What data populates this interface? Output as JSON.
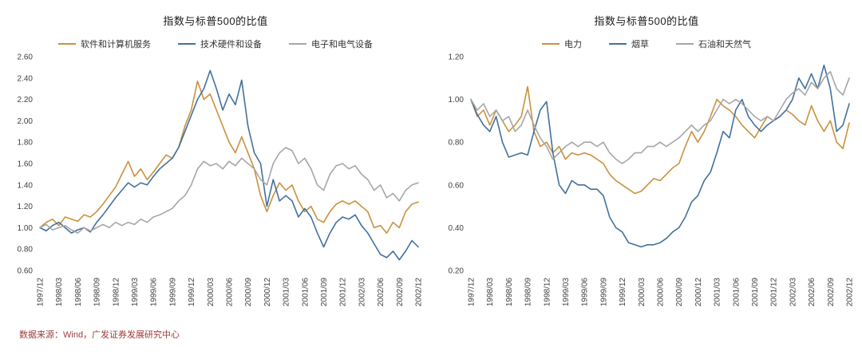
{
  "page": {
    "source_note": "数据来源：Wind，广发证券发展研究中心"
  },
  "chart_data": [
    {
      "type": "line",
      "title": "指数与标普500的比值",
      "ylim": [
        0.6,
        2.6
      ],
      "ytick_step": 0.2,
      "grid": false,
      "legend_position": "top",
      "x_tick_every": 3,
      "x_labels": [
        "1997/12",
        "1998/03",
        "1998/06",
        "1998/09",
        "1998/12",
        "1999/03",
        "1999/06",
        "1999/09",
        "1999/12",
        "2000/03",
        "2000/06",
        "2000/09",
        "2000/12",
        "2001/03",
        "2001/06",
        "2001/09",
        "2001/12",
        "2002/03",
        "2002/06",
        "2002/09",
        "2002/12"
      ],
      "series": [
        {
          "name": "软件和计算机服务",
          "color": "#C9913D",
          "values": [
            1.0,
            1.05,
            1.08,
            1.02,
            1.1,
            1.08,
            1.06,
            1.12,
            1.1,
            1.15,
            1.22,
            1.3,
            1.38,
            1.5,
            1.62,
            1.48,
            1.55,
            1.45,
            1.52,
            1.6,
            1.68,
            1.65,
            1.75,
            1.95,
            2.1,
            2.37,
            2.2,
            2.25,
            2.1,
            1.95,
            1.8,
            1.7,
            1.85,
            1.7,
            1.55,
            1.3,
            1.15,
            1.3,
            1.42,
            1.35,
            1.4,
            1.25,
            1.15,
            1.2,
            1.08,
            1.05,
            1.15,
            1.22,
            1.25,
            1.22,
            1.25,
            1.2,
            1.15,
            1.0,
            1.02,
            0.95,
            1.05,
            1.0,
            1.15,
            1.22,
            1.24
          ]
        },
        {
          "name": "技术硬件和设备",
          "color": "#41719C",
          "values": [
            1.0,
            0.97,
            1.02,
            1.05,
            1.0,
            0.95,
            0.98,
            1.0,
            0.96,
            1.05,
            1.12,
            1.2,
            1.28,
            1.35,
            1.42,
            1.38,
            1.42,
            1.4,
            1.48,
            1.55,
            1.6,
            1.65,
            1.75,
            1.9,
            2.05,
            2.2,
            2.3,
            2.47,
            2.3,
            2.1,
            2.25,
            2.15,
            2.38,
            1.95,
            1.7,
            1.6,
            1.2,
            1.45,
            1.25,
            1.3,
            1.25,
            1.1,
            1.18,
            1.1,
            0.95,
            0.82,
            0.95,
            1.05,
            1.1,
            1.08,
            1.12,
            1.02,
            0.95,
            0.85,
            0.75,
            0.72,
            0.78,
            0.7,
            0.78,
            0.88,
            0.82
          ]
        },
        {
          "name": "电子和电气设备",
          "color": "#A6A6A6",
          "values": [
            1.0,
            1.03,
            0.98,
            1.0,
            1.02,
            0.98,
            0.95,
            1.0,
            0.97,
            1.0,
            1.03,
            1.0,
            1.05,
            1.02,
            1.05,
            1.03,
            1.08,
            1.05,
            1.1,
            1.12,
            1.15,
            1.18,
            1.25,
            1.3,
            1.4,
            1.55,
            1.62,
            1.58,
            1.6,
            1.55,
            1.62,
            1.58,
            1.65,
            1.6,
            1.55,
            1.45,
            1.4,
            1.6,
            1.7,
            1.75,
            1.72,
            1.6,
            1.65,
            1.55,
            1.4,
            1.35,
            1.5,
            1.58,
            1.6,
            1.55,
            1.58,
            1.5,
            1.45,
            1.35,
            1.4,
            1.28,
            1.32,
            1.25,
            1.35,
            1.4,
            1.42
          ]
        }
      ]
    },
    {
      "type": "line",
      "title": "指数与标普500的比值",
      "ylim": [
        0.2,
        1.2
      ],
      "ytick_step": 0.2,
      "grid": false,
      "legend_position": "top",
      "x_tick_every": 3,
      "x_labels": [
        "1997/12",
        "1998/03",
        "1998/06",
        "1998/09",
        "1998/12",
        "1999/03",
        "1999/06",
        "1999/09",
        "1999/12",
        "2000/03",
        "2000/06",
        "2000/09",
        "2000/12",
        "2001/03",
        "2001/06",
        "2001/09",
        "2001/12",
        "2002/03",
        "2002/06",
        "2002/09",
        "2002/12"
      ],
      "series": [
        {
          "name": "电力",
          "color": "#C9913D",
          "values": [
            1.0,
            0.92,
            0.95,
            0.88,
            0.95,
            0.9,
            0.85,
            0.88,
            0.92,
            1.06,
            0.85,
            0.78,
            0.8,
            0.75,
            0.78,
            0.72,
            0.75,
            0.74,
            0.75,
            0.74,
            0.72,
            0.7,
            0.65,
            0.62,
            0.6,
            0.58,
            0.56,
            0.57,
            0.6,
            0.63,
            0.62,
            0.65,
            0.68,
            0.7,
            0.78,
            0.85,
            0.8,
            0.85,
            0.92,
            1.0,
            0.97,
            0.95,
            0.92,
            0.88,
            0.85,
            0.82,
            0.87,
            0.92,
            0.9,
            0.92,
            0.95,
            0.93,
            0.9,
            0.88,
            0.97,
            0.9,
            0.85,
            0.9,
            0.8,
            0.77,
            0.89
          ]
        },
        {
          "name": "烟草",
          "color": "#41719C",
          "values": [
            1.0,
            0.93,
            0.88,
            0.85,
            0.92,
            0.8,
            0.73,
            0.74,
            0.75,
            0.74,
            0.85,
            0.95,
            0.99,
            0.75,
            0.6,
            0.56,
            0.62,
            0.6,
            0.6,
            0.58,
            0.58,
            0.55,
            0.45,
            0.4,
            0.38,
            0.33,
            0.32,
            0.31,
            0.32,
            0.32,
            0.33,
            0.35,
            0.38,
            0.4,
            0.45,
            0.52,
            0.55,
            0.62,
            0.66,
            0.75,
            0.85,
            0.82,
            0.95,
            1.0,
            0.92,
            0.88,
            0.85,
            0.88,
            0.9,
            0.92,
            0.95,
            1.0,
            1.1,
            1.05,
            1.12,
            1.05,
            1.16,
            1.05,
            0.85,
            0.88,
            0.98
          ]
        },
        {
          "name": "石油和天然气",
          "color": "#A6A6A6",
          "values": [
            1.0,
            0.95,
            0.98,
            0.92,
            0.95,
            0.9,
            0.92,
            0.85,
            0.88,
            0.95,
            0.88,
            0.82,
            0.78,
            0.72,
            0.75,
            0.78,
            0.8,
            0.78,
            0.8,
            0.8,
            0.78,
            0.8,
            0.75,
            0.72,
            0.7,
            0.72,
            0.75,
            0.75,
            0.78,
            0.78,
            0.8,
            0.78,
            0.8,
            0.82,
            0.85,
            0.88,
            0.85,
            0.88,
            0.9,
            0.95,
            1.0,
            0.98,
            1.0,
            0.98,
            0.95,
            0.92,
            0.9,
            0.92,
            0.9,
            0.95,
            1.0,
            1.03,
            1.05,
            1.02,
            1.08,
            1.05,
            1.1,
            1.13,
            1.05,
            1.02,
            1.1
          ]
        }
      ]
    }
  ]
}
